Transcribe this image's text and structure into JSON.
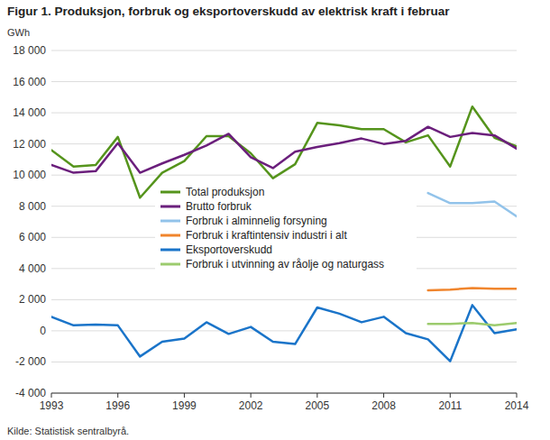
{
  "chart_data": {
    "type": "line",
    "title": "Figur 1. Produksjon, forbruk og eksportoverskudd av elektrisk kraft i februar",
    "y_label": "GWh",
    "source": "Kilde: Statistisk sentralbyrå.",
    "x": [
      1993,
      1994,
      1995,
      1996,
      1997,
      1998,
      1999,
      2000,
      2001,
      2002,
      2003,
      2004,
      2005,
      2006,
      2007,
      2008,
      2009,
      2010,
      2011,
      2012,
      2013,
      2014
    ],
    "xlim": [
      1993,
      2014
    ],
    "xticks": [
      1993,
      1996,
      1999,
      2002,
      2005,
      2008,
      2011,
      2014
    ],
    "ylim": [
      -4000,
      18000
    ],
    "yticks": [
      {
        "value": -4000,
        "label": "-4 000"
      },
      {
        "value": -2000,
        "label": "-2 000"
      },
      0,
      {
        "value": 2000,
        "label": "2 000"
      },
      {
        "value": 4000,
        "label": "4 000"
      },
      {
        "value": 6000,
        "label": "6 000"
      },
      {
        "value": 8000,
        "label": "8 000"
      },
      {
        "value": 10000,
        "label": "10 000"
      },
      {
        "value": 12000,
        "label": "12 000"
      },
      {
        "value": 14000,
        "label": "14 000"
      },
      {
        "value": 16000,
        "label": "16 000"
      },
      {
        "value": 18000,
        "label": "18 000"
      }
    ],
    "grid": true,
    "legend": "center",
    "series": [
      {
        "name": "Total produksjon",
        "color": "#55941c",
        "values": [
          11600,
          10550,
          10650,
          12450,
          8550,
          10150,
          10900,
          12500,
          12500,
          11400,
          9800,
          10700,
          13350,
          13200,
          12950,
          12950,
          12100,
          12550,
          10550,
          14400,
          12400,
          11850
        ]
      },
      {
        "name": "Brutto forbruk",
        "color": "#6b1f7c",
        "values": [
          10650,
          10150,
          10250,
          12050,
          10150,
          10750,
          11300,
          11900,
          12650,
          11150,
          10450,
          11500,
          11800,
          12050,
          12350,
          12000,
          12200,
          13100,
          12450,
          12700,
          12550,
          11700
        ]
      },
      {
        "name": "Forbruk i alminnelig forsyning",
        "color": "#92c3ea",
        "values": [
          null,
          null,
          null,
          null,
          null,
          null,
          null,
          null,
          null,
          null,
          null,
          null,
          null,
          null,
          null,
          null,
          null,
          8850,
          8200,
          8200,
          8300,
          7350
        ]
      },
      {
        "name": "Forbruk i kraftintensiv industri i alt",
        "color": "#f0852d",
        "values": [
          null,
          null,
          null,
          null,
          null,
          null,
          null,
          null,
          null,
          null,
          null,
          null,
          null,
          null,
          null,
          null,
          null,
          2600,
          2650,
          2750,
          2700,
          2700
        ]
      },
      {
        "name": "Eksportoverskudd",
        "color": "#1a74c9",
        "values": [
          900,
          350,
          400,
          350,
          -1650,
          -700,
          -500,
          550,
          -200,
          250,
          -700,
          -850,
          1500,
          1100,
          550,
          900,
          -150,
          -550,
          -1950,
          1650,
          -150,
          100
        ]
      },
      {
        "name": "Forbruk i utvinning av råolje og naturgass",
        "color": "#9ccb6e",
        "values": [
          null,
          null,
          null,
          null,
          null,
          null,
          null,
          null,
          null,
          null,
          null,
          null,
          null,
          null,
          null,
          null,
          null,
          450,
          450,
          500,
          350,
          500
        ]
      }
    ]
  }
}
